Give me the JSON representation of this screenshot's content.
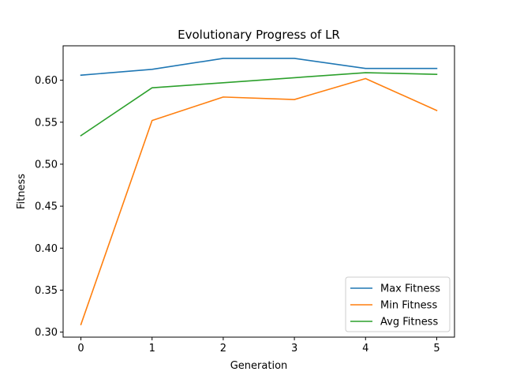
{
  "chart_data": {
    "type": "line",
    "title": "Evolutionary Progress of LR",
    "xlabel": "Generation",
    "ylabel": "Fitness",
    "x": [
      0,
      1,
      2,
      3,
      4,
      5
    ],
    "xlim": [
      -0.25,
      5.25
    ],
    "ylim": [
      0.294,
      0.641
    ],
    "xticks": [
      "0",
      "1",
      "2",
      "3",
      "4",
      "5"
    ],
    "yticks": [
      "0.30",
      "0.35",
      "0.40",
      "0.45",
      "0.50",
      "0.55",
      "0.60"
    ],
    "grid": false,
    "legend_position": "lower-right",
    "series": [
      {
        "name": "Max Fitness",
        "color": "#1f77b4",
        "values": [
          0.606,
          0.613,
          0.626,
          0.626,
          0.614,
          0.614
        ]
      },
      {
        "name": "Min Fitness",
        "color": "#ff7f0e",
        "values": [
          0.309,
          0.552,
          0.58,
          0.577,
          0.602,
          0.564
        ]
      },
      {
        "name": "Avg Fitness",
        "color": "#2ca02c",
        "values": [
          0.534,
          0.591,
          0.597,
          0.603,
          0.609,
          0.607
        ]
      }
    ]
  }
}
